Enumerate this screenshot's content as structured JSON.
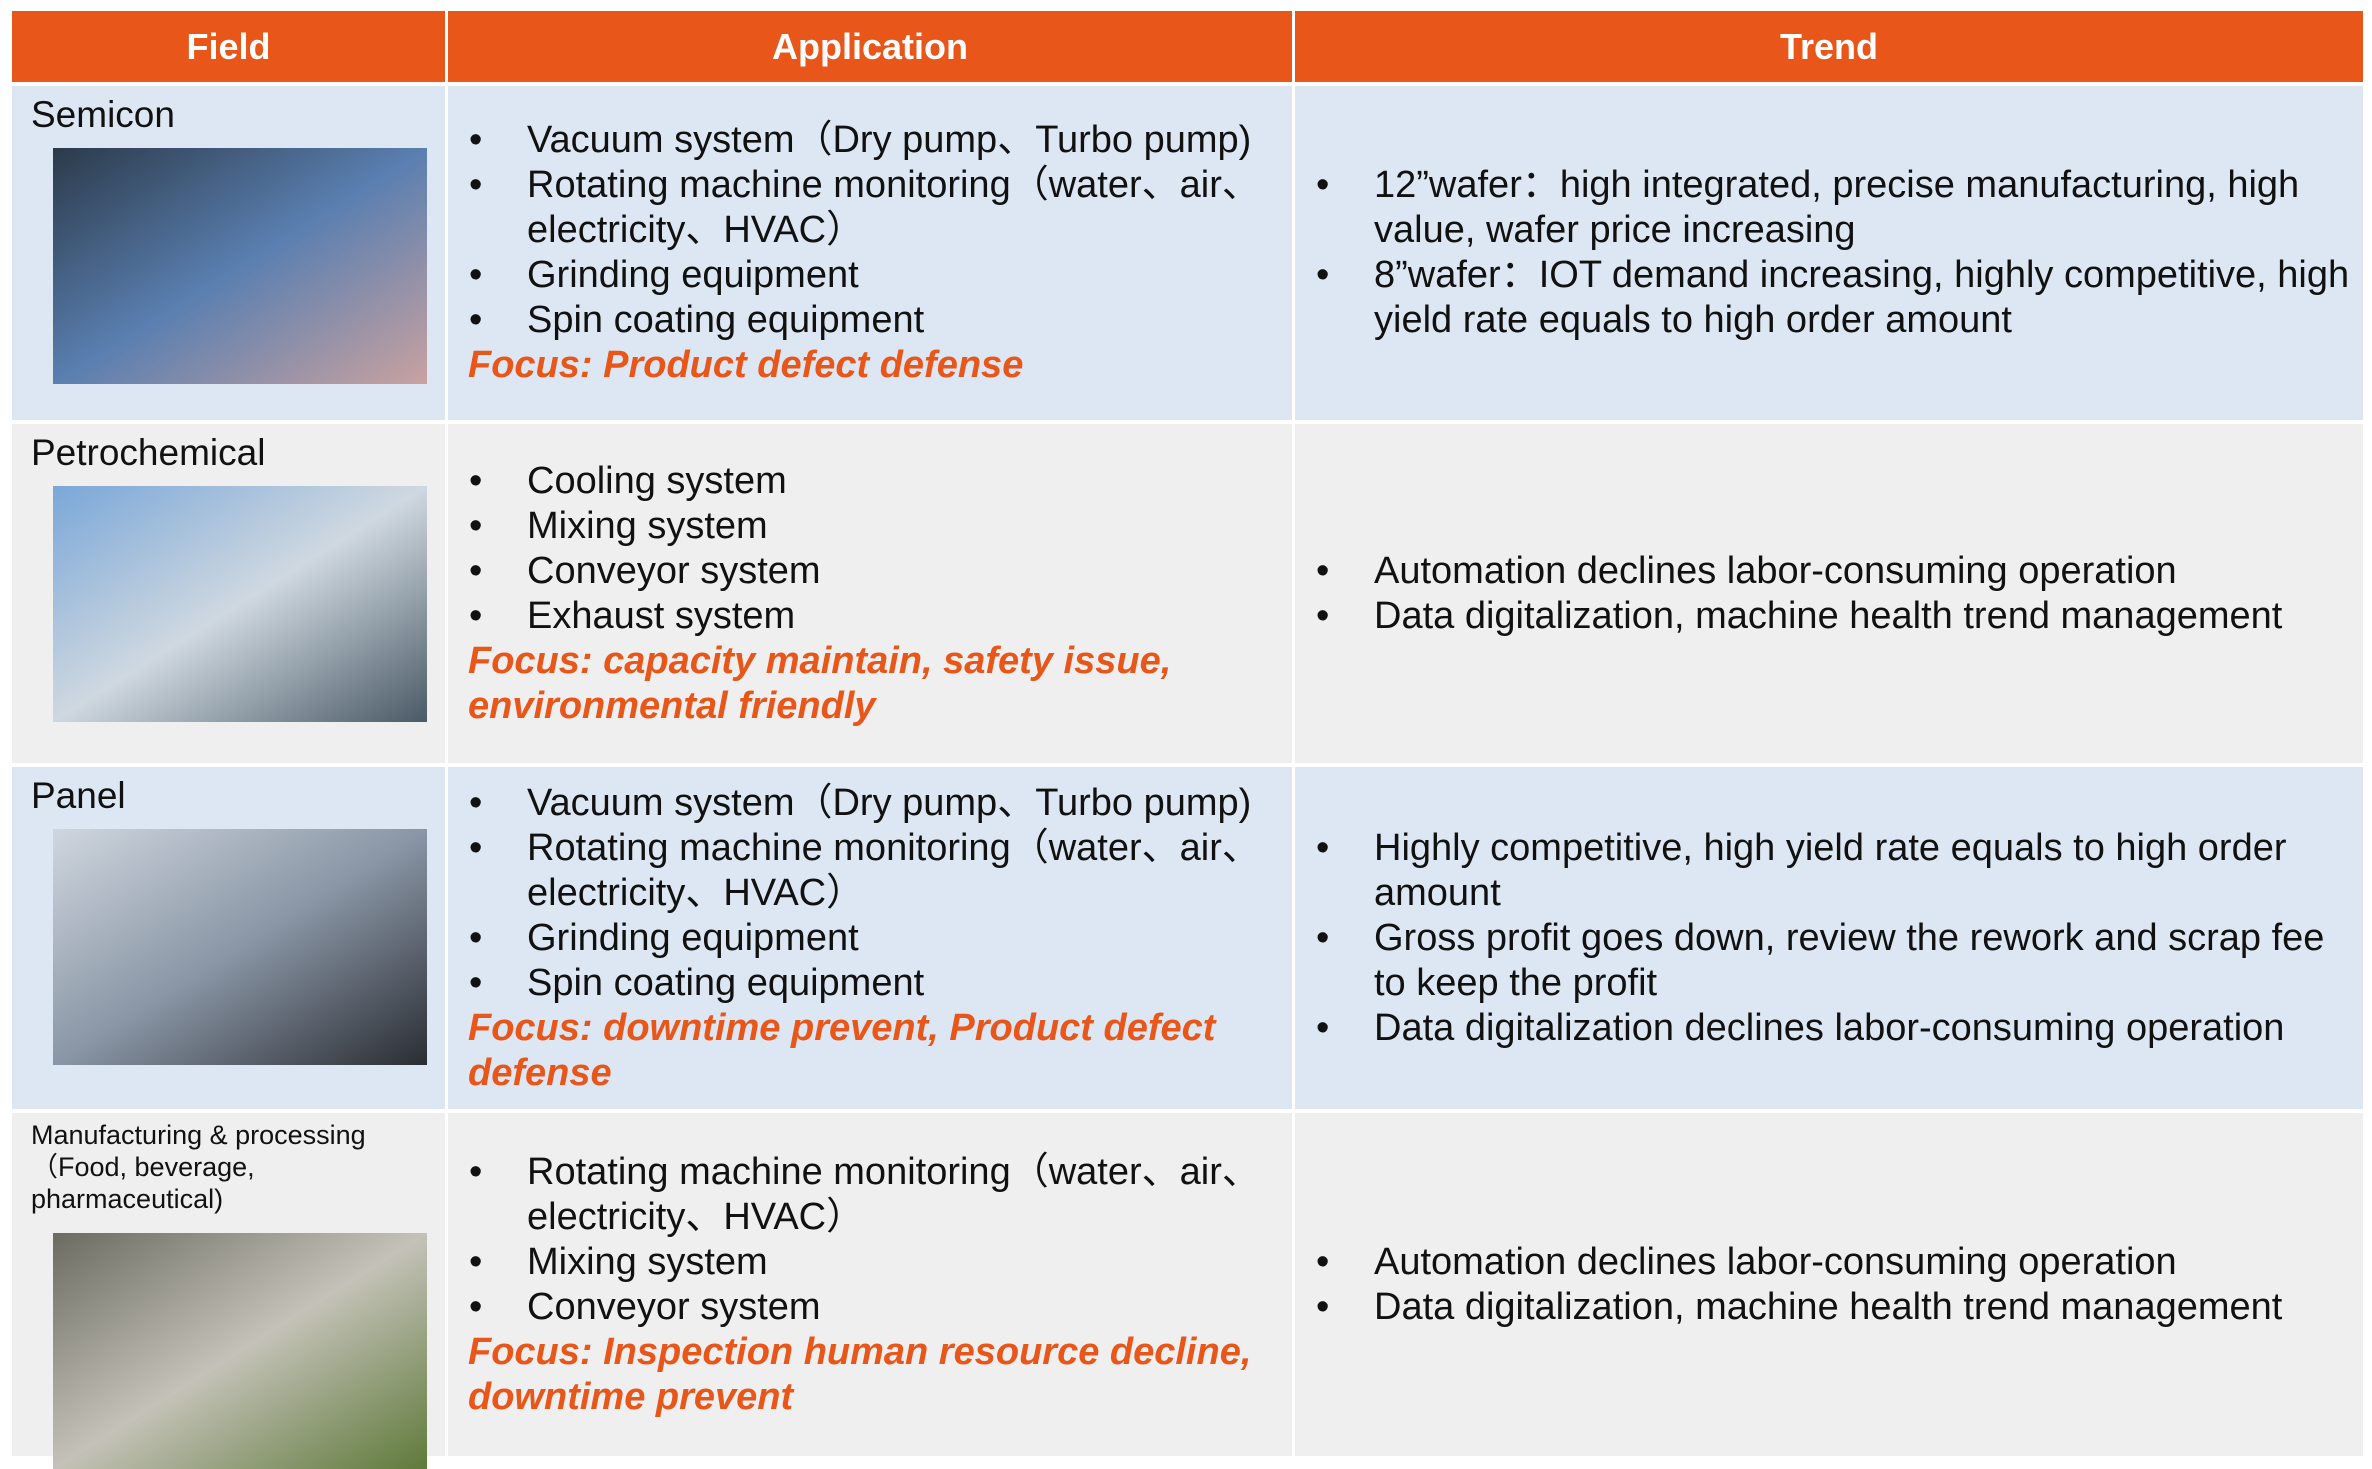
{
  "table": {
    "header": [
      "Field",
      "Application",
      "Trend"
    ],
    "rows": [
      {
        "field": "Semicon",
        "application": [
          "Vacuum system（Dry pump、Turbo pump)",
          "Rotating machine monitoring（water、air、electricity、HVAC）",
          "Grinding equipment",
          "Spin coating equipment"
        ],
        "focus": "Focus: Product defect defense",
        "trend": [
          "12”wafer：high integrated, precise manufacturing, high value, wafer price increasing",
          "8”wafer：IOT demand increasing, highly competitive, high yield rate equals to high order amount"
        ]
      },
      {
        "field": "Petrochemical",
        "application": [
          "Cooling system",
          "Mixing system",
          "Conveyor system",
          "Exhaust system"
        ],
        "focus": "Focus: capacity maintain, safety issue, environmental friendly",
        "trend": [
          "Automation declines labor-consuming operation",
          "Data digitalization, machine health trend management"
        ]
      },
      {
        "field": "Panel",
        "application": [
          "Vacuum system（Dry pump、Turbo pump)",
          "Rotating machine monitoring（water、air、electricity、HVAC）",
          "Grinding equipment",
          "Spin coating equipment"
        ],
        "focus": "Focus: downtime prevent, Product defect defense",
        "trend": [
          "Highly competitive, high yield rate equals to high order amount",
          "Gross profit goes down, review the rework and scrap fee to keep the profit",
          "Data digitalization declines labor-consuming operation"
        ]
      },
      {
        "field": "Manufacturing & processing（Food, beverage, pharmaceutical)",
        "application": [
          "Rotating machine monitoring（water、air、electricity、HVAC）",
          "Mixing system",
          "Conveyor system"
        ],
        "focus": "Focus: Inspection human resource decline, downtime prevent",
        "trend": [
          "Automation declines labor-consuming operation",
          "Data digitalization, machine health trend management"
        ]
      }
    ]
  }
}
